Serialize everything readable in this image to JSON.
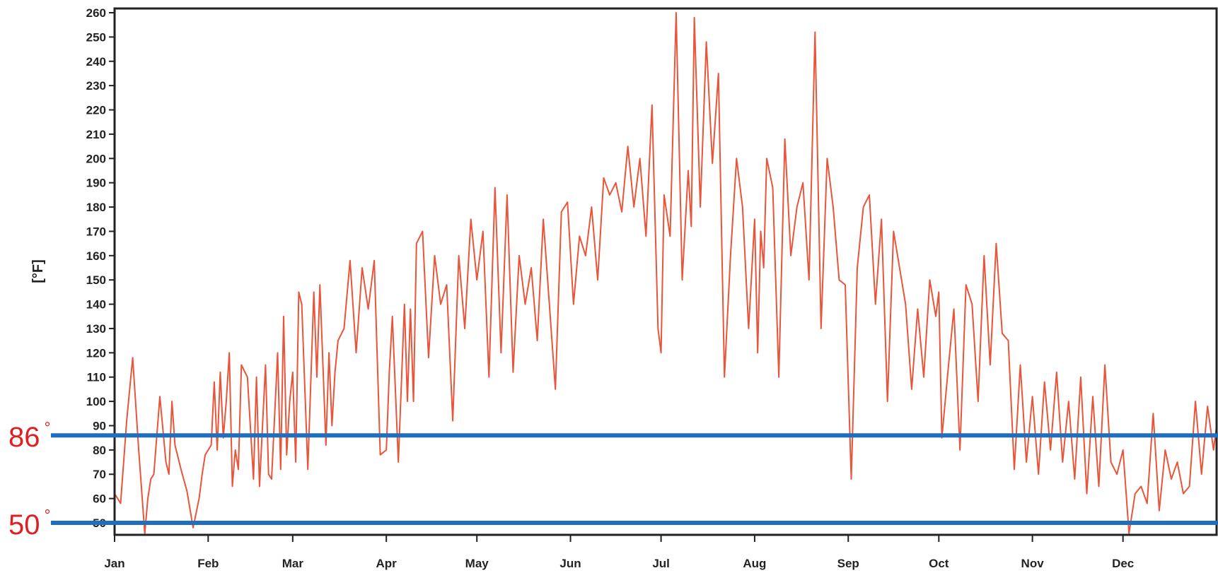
{
  "chart_data": {
    "type": "line",
    "ylabel": "[°F]",
    "ylim": [
      45,
      260
    ],
    "yticks": [
      50,
      60,
      70,
      80,
      90,
      100,
      110,
      120,
      130,
      140,
      150,
      160,
      170,
      180,
      190,
      200,
      210,
      220,
      230,
      240,
      250,
      260
    ],
    "xlim": [
      0,
      365
    ],
    "month_ticks": [
      {
        "label": "Jan",
        "day": 0
      },
      {
        "label": "Feb",
        "day": 31
      },
      {
        "label": "Mar",
        "day": 59
      },
      {
        "label": "Apr",
        "day": 90
      },
      {
        "label": "May",
        "day": 120
      },
      {
        "label": "Jun",
        "day": 151
      },
      {
        "label": "Jul",
        "day": 181
      },
      {
        "label": "Aug",
        "day": 212
      },
      {
        "label": "Sep",
        "day": 243
      },
      {
        "label": "Oct",
        "day": 273
      },
      {
        "label": "Nov",
        "day": 304
      },
      {
        "label": "Dec",
        "day": 334
      }
    ],
    "grid": false,
    "series": [
      {
        "color": "#e8553a",
        "x": [
          0,
          2,
          4,
          6,
          8,
          10,
          11,
          12,
          13,
          15,
          17,
          18,
          19,
          20,
          22,
          24,
          26,
          28,
          29,
          30,
          32,
          33,
          34,
          35,
          36,
          37,
          38,
          39,
          40,
          41,
          42,
          44,
          46,
          47,
          48,
          50,
          51,
          52,
          54,
          55,
          56,
          57,
          58,
          59,
          60,
          61,
          62,
          64,
          66,
          67,
          68,
          70,
          71,
          72,
          73,
          74,
          76,
          78,
          80,
          82,
          84,
          86,
          88,
          90,
          91,
          92,
          94,
          96,
          97,
          98,
          99,
          100,
          102,
          104,
          106,
          108,
          110,
          112,
          114,
          116,
          118,
          120,
          122,
          124,
          126,
          128,
          130,
          132,
          134,
          136,
          138,
          140,
          142,
          144,
          146,
          148,
          150,
          152,
          154,
          156,
          158,
          160,
          162,
          164,
          166,
          168,
          170,
          172,
          174,
          176,
          178,
          180,
          181,
          182,
          184,
          186,
          188,
          190,
          191,
          192,
          194,
          196,
          198,
          200,
          202,
          204,
          206,
          208,
          210,
          212,
          213,
          214,
          215,
          216,
          218,
          220,
          222,
          224,
          226,
          228,
          230,
          232,
          234,
          236,
          238,
          240,
          242,
          244,
          246,
          248,
          250,
          252,
          254,
          256,
          258,
          260,
          262,
          264,
          266,
          268,
          270,
          272,
          273,
          274,
          276,
          278,
          280,
          282,
          284,
          286,
          288,
          290,
          292,
          294,
          296,
          298,
          300,
          302,
          304,
          306,
          308,
          310,
          312,
          314,
          316,
          318,
          320,
          322,
          324,
          326,
          328,
          330,
          332,
          334,
          336,
          338,
          340,
          342,
          344,
          346,
          348,
          350,
          352,
          354,
          356,
          358,
          360,
          362,
          364,
          365
        ],
        "y": [
          62,
          58,
          92,
          118,
          80,
          45,
          60,
          68,
          70,
          102,
          75,
          70,
          100,
          82,
          72,
          63,
          48,
          60,
          70,
          78,
          82,
          108,
          80,
          112,
          85,
          100,
          120,
          65,
          80,
          72,
          115,
          110,
          68,
          110,
          65,
          115,
          70,
          68,
          120,
          72,
          135,
          78,
          100,
          112,
          75,
          145,
          140,
          72,
          145,
          110,
          148,
          82,
          120,
          90,
          112,
          125,
          130,
          158,
          120,
          155,
          138,
          158,
          78,
          80,
          112,
          135,
          75,
          140,
          100,
          138,
          100,
          165,
          170,
          118,
          160,
          140,
          148,
          92,
          160,
          130,
          175,
          150,
          170,
          110,
          188,
          120,
          185,
          112,
          160,
          140,
          155,
          125,
          175,
          140,
          105,
          178,
          182,
          140,
          168,
          160,
          180,
          150,
          192,
          185,
          190,
          178,
          205,
          180,
          200,
          168,
          222,
          130,
          120,
          185,
          168,
          260,
          150,
          195,
          172,
          258,
          180,
          248,
          198,
          235,
          110,
          160,
          200,
          180,
          130,
          175,
          120,
          170,
          155,
          200,
          188,
          110,
          208,
          160,
          180,
          190,
          150,
          252,
          130,
          200,
          180,
          150,
          148,
          68,
          155,
          180,
          185,
          140,
          175,
          100,
          170,
          155,
          140,
          105,
          138,
          110,
          150,
          135,
          145,
          85,
          112,
          138,
          80,
          148,
          140,
          100,
          160,
          115,
          165,
          128,
          125,
          72,
          115,
          75,
          102,
          70,
          108,
          80,
          112,
          75,
          100,
          68,
          110,
          62,
          102,
          65,
          115,
          75,
          70,
          80,
          45,
          62,
          65,
          58,
          95,
          55,
          80,
          68,
          75,
          62,
          65,
          100,
          70,
          98,
          80,
          90
        ]
      }
    ],
    "reference_lines": [
      {
        "value": 86,
        "label": "86",
        "color": "#1f6fc0"
      },
      {
        "value": 50,
        "label": "50",
        "color": "#1f6fc0"
      }
    ]
  }
}
